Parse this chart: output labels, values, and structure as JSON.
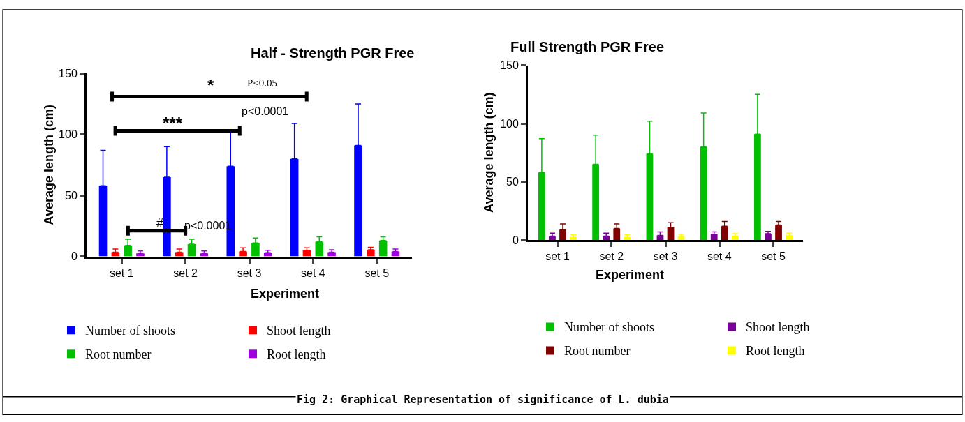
{
  "chart_data": [
    {
      "type": "bar",
      "title": "Half - Strength PGR Free",
      "xlabel": "Experiment",
      "ylabel": "Average length (cm)",
      "categories": [
        "set 1",
        "set 2",
        "set 3",
        "set 4",
        "set 5"
      ],
      "ylim": [
        0,
        150
      ],
      "yticks": [
        0,
        50,
        100,
        150
      ],
      "legend": "bottom",
      "series": [
        {
          "name": "Number of shoots",
          "color": "#0000ff",
          "values": [
            58,
            65,
            74,
            80,
            91
          ],
          "errors": [
            [
              58,
              87
            ],
            [
              65,
              90
            ],
            [
              74,
              102
            ],
            [
              80,
              109
            ],
            [
              91,
              125
            ]
          ]
        },
        {
          "name": "Shoot length",
          "color": "#ff0000",
          "values": [
            3.5,
            3.5,
            4,
            5,
            5.5
          ],
          "errors": [
            [
              3.5,
              6
            ],
            [
              3.5,
              6
            ],
            [
              4,
              7
            ],
            [
              5,
              7
            ],
            [
              5.5,
              7.5
            ]
          ]
        },
        {
          "name": "Root number",
          "color": "#00c000",
          "values": [
            9,
            10,
            11,
            12,
            13
          ],
          "errors": [
            [
              9,
              14
            ],
            [
              10,
              14
            ],
            [
              11,
              15
            ],
            [
              12,
              16
            ],
            [
              13,
              16
            ]
          ]
        },
        {
          "name": "Root length",
          "color": "#a000e0",
          "values": [
            2.5,
            2.5,
            3,
            3.5,
            4
          ],
          "errors": [
            [
              2.5,
              4.5
            ],
            [
              2.5,
              4.5
            ],
            [
              3,
              5
            ],
            [
              3.5,
              5.5
            ],
            [
              4,
              6
            ]
          ]
        }
      ],
      "annotations": [
        "*",
        "P<0.05",
        "p<0.0001",
        "***",
        "#",
        "p<0.0001",
        "Fig 2: Graphical Representation of significance of L. dubia"
      ]
    },
    {
      "type": "bar",
      "title": "Full Strength PGR Free",
      "xlabel": "Experiment",
      "ylabel": "Average length (cm)",
      "categories": [
        "set 1",
        "set 2",
        "set 3",
        "set 4",
        "set 5"
      ],
      "ylim": [
        0,
        150
      ],
      "yticks": [
        0,
        50,
        100,
        150
      ],
      "legend": "bottom",
      "series": [
        {
          "name": "Number of shoots",
          "color": "#00c000",
          "values": [
            58,
            65,
            74,
            80,
            91
          ],
          "errors": [
            [
              58,
              87
            ],
            [
              65,
              90
            ],
            [
              74,
              102
            ],
            [
              80,
              109
            ],
            [
              91,
              125
            ]
          ]
        },
        {
          "name": "Shoot length",
          "color": "#780098",
          "values": [
            3.5,
            3.5,
            4,
            5,
            5.5
          ],
          "errors": [
            [
              3.5,
              6
            ],
            [
              3.5,
              6
            ],
            [
              4,
              7
            ],
            [
              5,
              7
            ],
            [
              5.5,
              7.5
            ]
          ]
        },
        {
          "name": "Root number",
          "color": "#800000",
          "values": [
            9,
            10,
            11,
            12,
            13
          ],
          "errors": [
            [
              9,
              14
            ],
            [
              10,
              14
            ],
            [
              11,
              15
            ],
            [
              12,
              16
            ],
            [
              13,
              16
            ]
          ]
        },
        {
          "name": "Root length",
          "color": "#ffff00",
          "values": [
            2.5,
            2.5,
            3,
            3.5,
            4
          ],
          "errors": [
            [
              2.5,
              4.5
            ],
            [
              2.5,
              4.5
            ],
            [
              3,
              5
            ],
            [
              3.5,
              5.5
            ],
            [
              4,
              6
            ]
          ]
        }
      ]
    }
  ]
}
